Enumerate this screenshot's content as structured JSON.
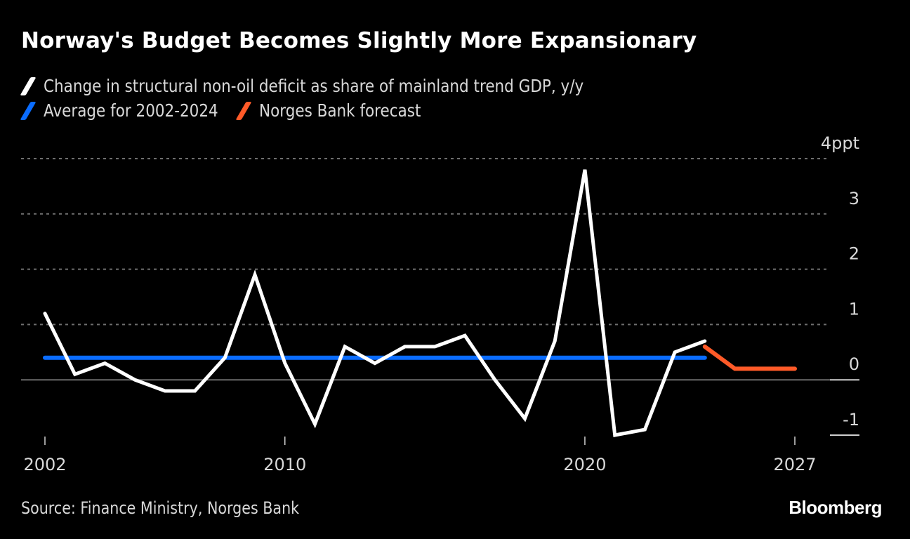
{
  "title": "Norway's Budget Becomes Slightly More Expansionary",
  "legend": [
    {
      "label": "Change in structural non-oil deficit as share of mainland trend GDP, y/y",
      "color": "#ffffff",
      "icon": "slash-swatch-icon"
    },
    {
      "label": "Average for 2002-2024",
      "color": "#0a6cff",
      "icon": "slash-swatch-icon"
    },
    {
      "label": "Norges Bank forecast",
      "color": "#ff5a28",
      "icon": "slash-swatch-icon"
    }
  ],
  "source": "Source: Finance Ministry, Norges Bank",
  "brand": "Bloomberg",
  "chart_data": {
    "type": "line",
    "title": "Norway's Budget Becomes Slightly More Expansionary",
    "xlabel": "",
    "ylabel": "ppt",
    "xlim": [
      2002,
      2027
    ],
    "ylim": [
      -1,
      4
    ],
    "y_ticks": [
      -1,
      0,
      1,
      2,
      3,
      4
    ],
    "y_tick_labels": [
      "-1",
      "0",
      "1",
      "2",
      "3",
      "4ppt"
    ],
    "x_ticks": [
      2002,
      2010,
      2020,
      2027
    ],
    "x_tick_labels": [
      "2002",
      "2010",
      "2020",
      "2027"
    ],
    "grid": true,
    "legend_position": "top-left",
    "series": [
      {
        "name": "Change in structural non-oil deficit as share of mainland trend GDP, y/y",
        "color": "#ffffff",
        "x": [
          2002,
          2003,
          2004,
          2005,
          2006,
          2007,
          2008,
          2009,
          2010,
          2011,
          2012,
          2013,
          2014,
          2015,
          2016,
          2017,
          2018,
          2019,
          2020,
          2021,
          2022,
          2023,
          2024
        ],
        "values": [
          1.2,
          0.1,
          0.3,
          0.0,
          -0.2,
          -0.2,
          0.4,
          1.9,
          0.3,
          -0.8,
          0.6,
          0.3,
          0.6,
          0.6,
          0.8,
          0.0,
          -0.7,
          0.7,
          3.8,
          -1.0,
          -0.9,
          0.5,
          0.7
        ]
      },
      {
        "name": "Average for 2002-2024",
        "color": "#0a6cff",
        "x": [
          2002,
          2024
        ],
        "values": [
          0.4,
          0.4
        ]
      },
      {
        "name": "Norges Bank forecast",
        "color": "#ff5a28",
        "x": [
          2024,
          2025,
          2026,
          2027
        ],
        "values": [
          0.6,
          0.2,
          0.2,
          0.2
        ]
      }
    ]
  }
}
